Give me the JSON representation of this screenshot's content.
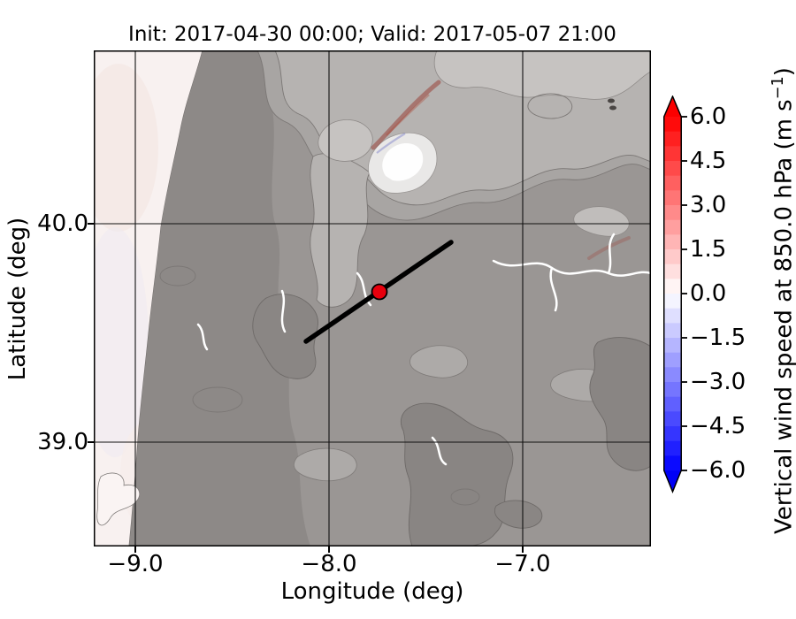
{
  "title": "Init: 2017-04-30 00:00; Valid: 2017-05-07 21:00",
  "axes": {
    "xlabel": "Longitude (deg)",
    "ylabel": "Latitude (deg)",
    "xticks": [
      "−9.0",
      "−8.0",
      "−7.0"
    ],
    "yticks": [
      "40.0",
      "39.0"
    ]
  },
  "colorbar": {
    "label_prefix": "Vertical wind speed at 850.0 hPa (m s",
    "label_sup": "−1",
    "label_suffix": ")",
    "ticks": [
      "6.0",
      "4.5",
      "3.0",
      "1.5",
      "0.0",
      "−1.5",
      "−3.0",
      "−4.5",
      "−6.0"
    ],
    "min": -6,
    "max": 6,
    "step": 0.5,
    "over_color": "#fb0000",
    "under_color": "#0000f6"
  },
  "chart_data": {
    "type": "heatmap",
    "title": "Init: 2017-04-30 00:00; Valid: 2017-05-07 21:00",
    "xlabel": "Longitude (deg)",
    "ylabel": "Latitude (deg)",
    "xlim": [
      -9.22,
      -6.34
    ],
    "ylim": [
      38.52,
      40.79
    ],
    "xticks": [
      -9.0,
      -8.0,
      -7.0
    ],
    "yticks": [
      40.0,
      39.0
    ],
    "grid": true,
    "colorbar": {
      "label": "Vertical wind speed at 850.0 hPa (m s⁻¹)",
      "ticks": [
        6.0,
        4.5,
        3.0,
        1.5,
        0.0,
        -1.5,
        -3.0,
        -4.5,
        -6.0
      ],
      "vmin": -6.0,
      "vmax": 6.0,
      "band_step": 0.5,
      "cmap": "blue-white-red",
      "extend": "both",
      "position": "right"
    },
    "field_note": "Vertical wind speed near 0 m/s over most of domain (white/faint pink-blue); gray shaded-relief topography with contour bands; pale ocean strip along west edge; faint positive (red) streak over high terrain near (-7.9, 40.4)",
    "overlays": {
      "cross_section_line": {
        "lon": [
          -8.12,
          -7.37
        ],
        "lat": [
          39.46,
          39.91
        ],
        "color": "#000000"
      },
      "point_marker": {
        "lon": -7.74,
        "lat": 39.69,
        "color": "#e8000d"
      }
    }
  }
}
